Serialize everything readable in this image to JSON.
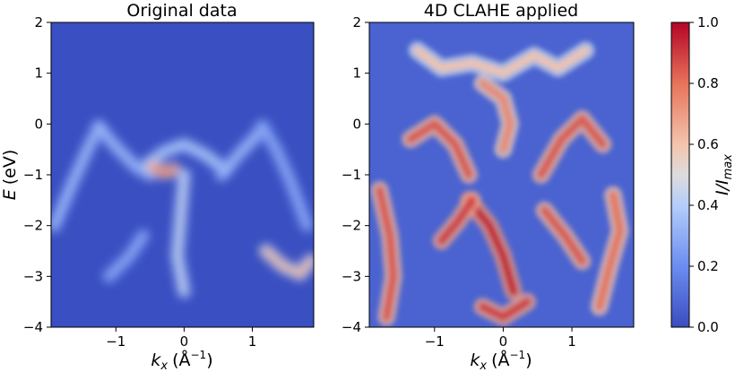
{
  "chart_data": [
    {
      "type": "heatmap",
      "title": "Original data",
      "xlabel": "k_x (Å^-1)",
      "ylabel": "E (eV)",
      "xlim": [
        -1.95,
        1.9
      ],
      "ylim": [
        -4,
        2
      ],
      "x_ticks": [
        -1,
        0,
        1
      ],
      "x_tick_labels": [
        "−1",
        "0",
        "1"
      ],
      "y_ticks": [
        2,
        1,
        0,
        -1,
        -2,
        -3,
        -4
      ],
      "y_tick_labels": [
        "2",
        "1",
        "0",
        "−1",
        "−2",
        "−3",
        "−4"
      ],
      "colormap": "coolwarm",
      "background_value": 0.05,
      "features": [
        {
          "name": "left-cone",
          "points": [
            [
              -1.25,
              -0.05
            ],
            [
              -1.45,
              -0.6
            ],
            [
              -1.65,
              -1.2
            ],
            [
              -1.9,
              -2.0
            ]
          ],
          "intensity": 0.35
        },
        {
          "name": "left-arm",
          "points": [
            [
              -1.25,
              -0.05
            ],
            [
              -1.0,
              -0.45
            ],
            [
              -0.7,
              -0.85
            ],
            [
              -0.5,
              -1.0
            ]
          ],
          "intensity": 0.35
        },
        {
          "name": "central-dome",
          "points": [
            [
              -0.55,
              -0.8
            ],
            [
              -0.3,
              -0.55
            ],
            [
              0.0,
              -0.4
            ],
            [
              0.3,
              -0.6
            ],
            [
              0.6,
              -0.9
            ]
          ],
          "intensity": 0.4
        },
        {
          "name": "hotspot",
          "points": [
            [
              -0.45,
              -0.85
            ],
            [
              -0.3,
              -0.95
            ],
            [
              -0.15,
              -0.9
            ]
          ],
          "intensity": 0.8
        },
        {
          "name": "right-arm",
          "points": [
            [
              0.55,
              -1.0
            ],
            [
              0.8,
              -0.6
            ],
            [
              1.05,
              -0.25
            ],
            [
              1.15,
              -0.05
            ]
          ],
          "intensity": 0.35
        },
        {
          "name": "right-cone",
          "points": [
            [
              1.15,
              -0.05
            ],
            [
              1.35,
              -0.5
            ],
            [
              1.55,
              -1.1
            ],
            [
              1.8,
              -2.0
            ]
          ],
          "intensity": 0.3
        },
        {
          "name": "central-stem",
          "points": [
            [
              0.0,
              -1.0
            ],
            [
              -0.05,
              -1.8
            ],
            [
              -0.1,
              -2.6
            ],
            [
              0.0,
              -3.3
            ]
          ],
          "intensity": 0.45
        },
        {
          "name": "lower-right",
          "points": [
            [
              1.2,
              -2.5
            ],
            [
              1.45,
              -2.8
            ],
            [
              1.7,
              -2.95
            ],
            [
              1.85,
              -2.7
            ]
          ],
          "intensity": 0.65
        },
        {
          "name": "lower-left",
          "points": [
            [
              -1.1,
              -3.0
            ],
            [
              -0.8,
              -2.6
            ],
            [
              -0.6,
              -2.2
            ]
          ],
          "intensity": 0.3
        }
      ]
    },
    {
      "type": "heatmap",
      "title": "4D CLAHE applied",
      "xlabel": "k_x (Å^-1)",
      "ylabel": "",
      "xlim": [
        -1.95,
        1.9
      ],
      "ylim": [
        -4,
        2
      ],
      "x_ticks": [
        -1,
        0,
        1
      ],
      "x_tick_labels": [
        "−1",
        "0",
        "1"
      ],
      "y_ticks": [
        2,
        1,
        0,
        -1,
        -2,
        -3,
        -4
      ],
      "y_tick_labels": [
        "2",
        "1",
        "0",
        "−1",
        "−2",
        "−3",
        "−4"
      ],
      "colormap": "coolwarm",
      "background_value": 0.15,
      "features": [
        {
          "name": "top-speckles",
          "points": [
            [
              -1.25,
              1.45
            ],
            [
              -0.9,
              1.1
            ],
            [
              -0.45,
              1.2
            ],
            [
              0.0,
              1.0
            ],
            [
              0.45,
              1.35
            ],
            [
              0.8,
              1.1
            ],
            [
              1.2,
              1.45
            ]
          ],
          "intensity": 0.6
        },
        {
          "name": "central-plume",
          "points": [
            [
              -0.3,
              0.8
            ],
            [
              0.0,
              0.5
            ],
            [
              0.1,
              0.0
            ],
            [
              0.0,
              -0.5
            ]
          ],
          "intensity": 0.75
        },
        {
          "name": "left-arc",
          "points": [
            [
              -1.35,
              -0.3
            ],
            [
              -1.0,
              0.0
            ],
            [
              -0.7,
              -0.4
            ],
            [
              -0.5,
              -1.0
            ]
          ],
          "intensity": 0.85
        },
        {
          "name": "right-arc",
          "points": [
            [
              0.55,
              -1.0
            ],
            [
              0.85,
              -0.3
            ],
            [
              1.15,
              0.1
            ],
            [
              1.45,
              -0.4
            ]
          ],
          "intensity": 0.85
        },
        {
          "name": "central-x",
          "points": [
            [
              -0.5,
              -1.5
            ],
            [
              -0.2,
              -2.0
            ],
            [
              0.0,
              -2.6
            ],
            [
              0.15,
              -3.3
            ]
          ],
          "intensity": 0.95
        },
        {
          "name": "left-diag",
          "points": [
            [
              -0.9,
              -2.3
            ],
            [
              -0.65,
              -1.9
            ],
            [
              -0.45,
              -1.5
            ]
          ],
          "intensity": 0.9
        },
        {
          "name": "right-diag",
          "points": [
            [
              0.6,
              -1.7
            ],
            [
              0.9,
              -2.2
            ],
            [
              1.15,
              -2.7
            ]
          ],
          "intensity": 0.85
        },
        {
          "name": "far-left",
          "points": [
            [
              -1.8,
              -1.3
            ],
            [
              -1.65,
              -2.2
            ],
            [
              -1.6,
              -3.0
            ],
            [
              -1.7,
              -3.8
            ]
          ],
          "intensity": 0.85
        },
        {
          "name": "far-right",
          "points": [
            [
              1.6,
              -1.4
            ],
            [
              1.7,
              -2.1
            ],
            [
              1.55,
              -2.8
            ],
            [
              1.4,
              -3.6
            ]
          ],
          "intensity": 0.8
        },
        {
          "name": "bottom-center",
          "points": [
            [
              -0.3,
              -3.6
            ],
            [
              0.0,
              -3.8
            ],
            [
              0.35,
              -3.5
            ]
          ],
          "intensity": 0.9
        }
      ]
    }
  ],
  "colorbar": {
    "label": "I/I_max",
    "ticks": [
      0.0,
      0.2,
      0.4,
      0.6,
      0.8,
      1.0
    ],
    "tick_labels": [
      "0.0",
      "0.2",
      "0.4",
      "0.6",
      "0.8",
      "1.0"
    ]
  },
  "text": {
    "title_left": "Original data",
    "title_right": "4D CLAHE applied",
    "ylabel_main": "E",
    "ylabel_unit": "(eV)",
    "xlabel_k": "k",
    "xlabel_sub": "x",
    "xlabel_unit_open": "(Å",
    "xlabel_unit_exp": "−1",
    "xlabel_unit_close": ")",
    "cbar_I": "I/I",
    "cbar_sub": "max"
  }
}
